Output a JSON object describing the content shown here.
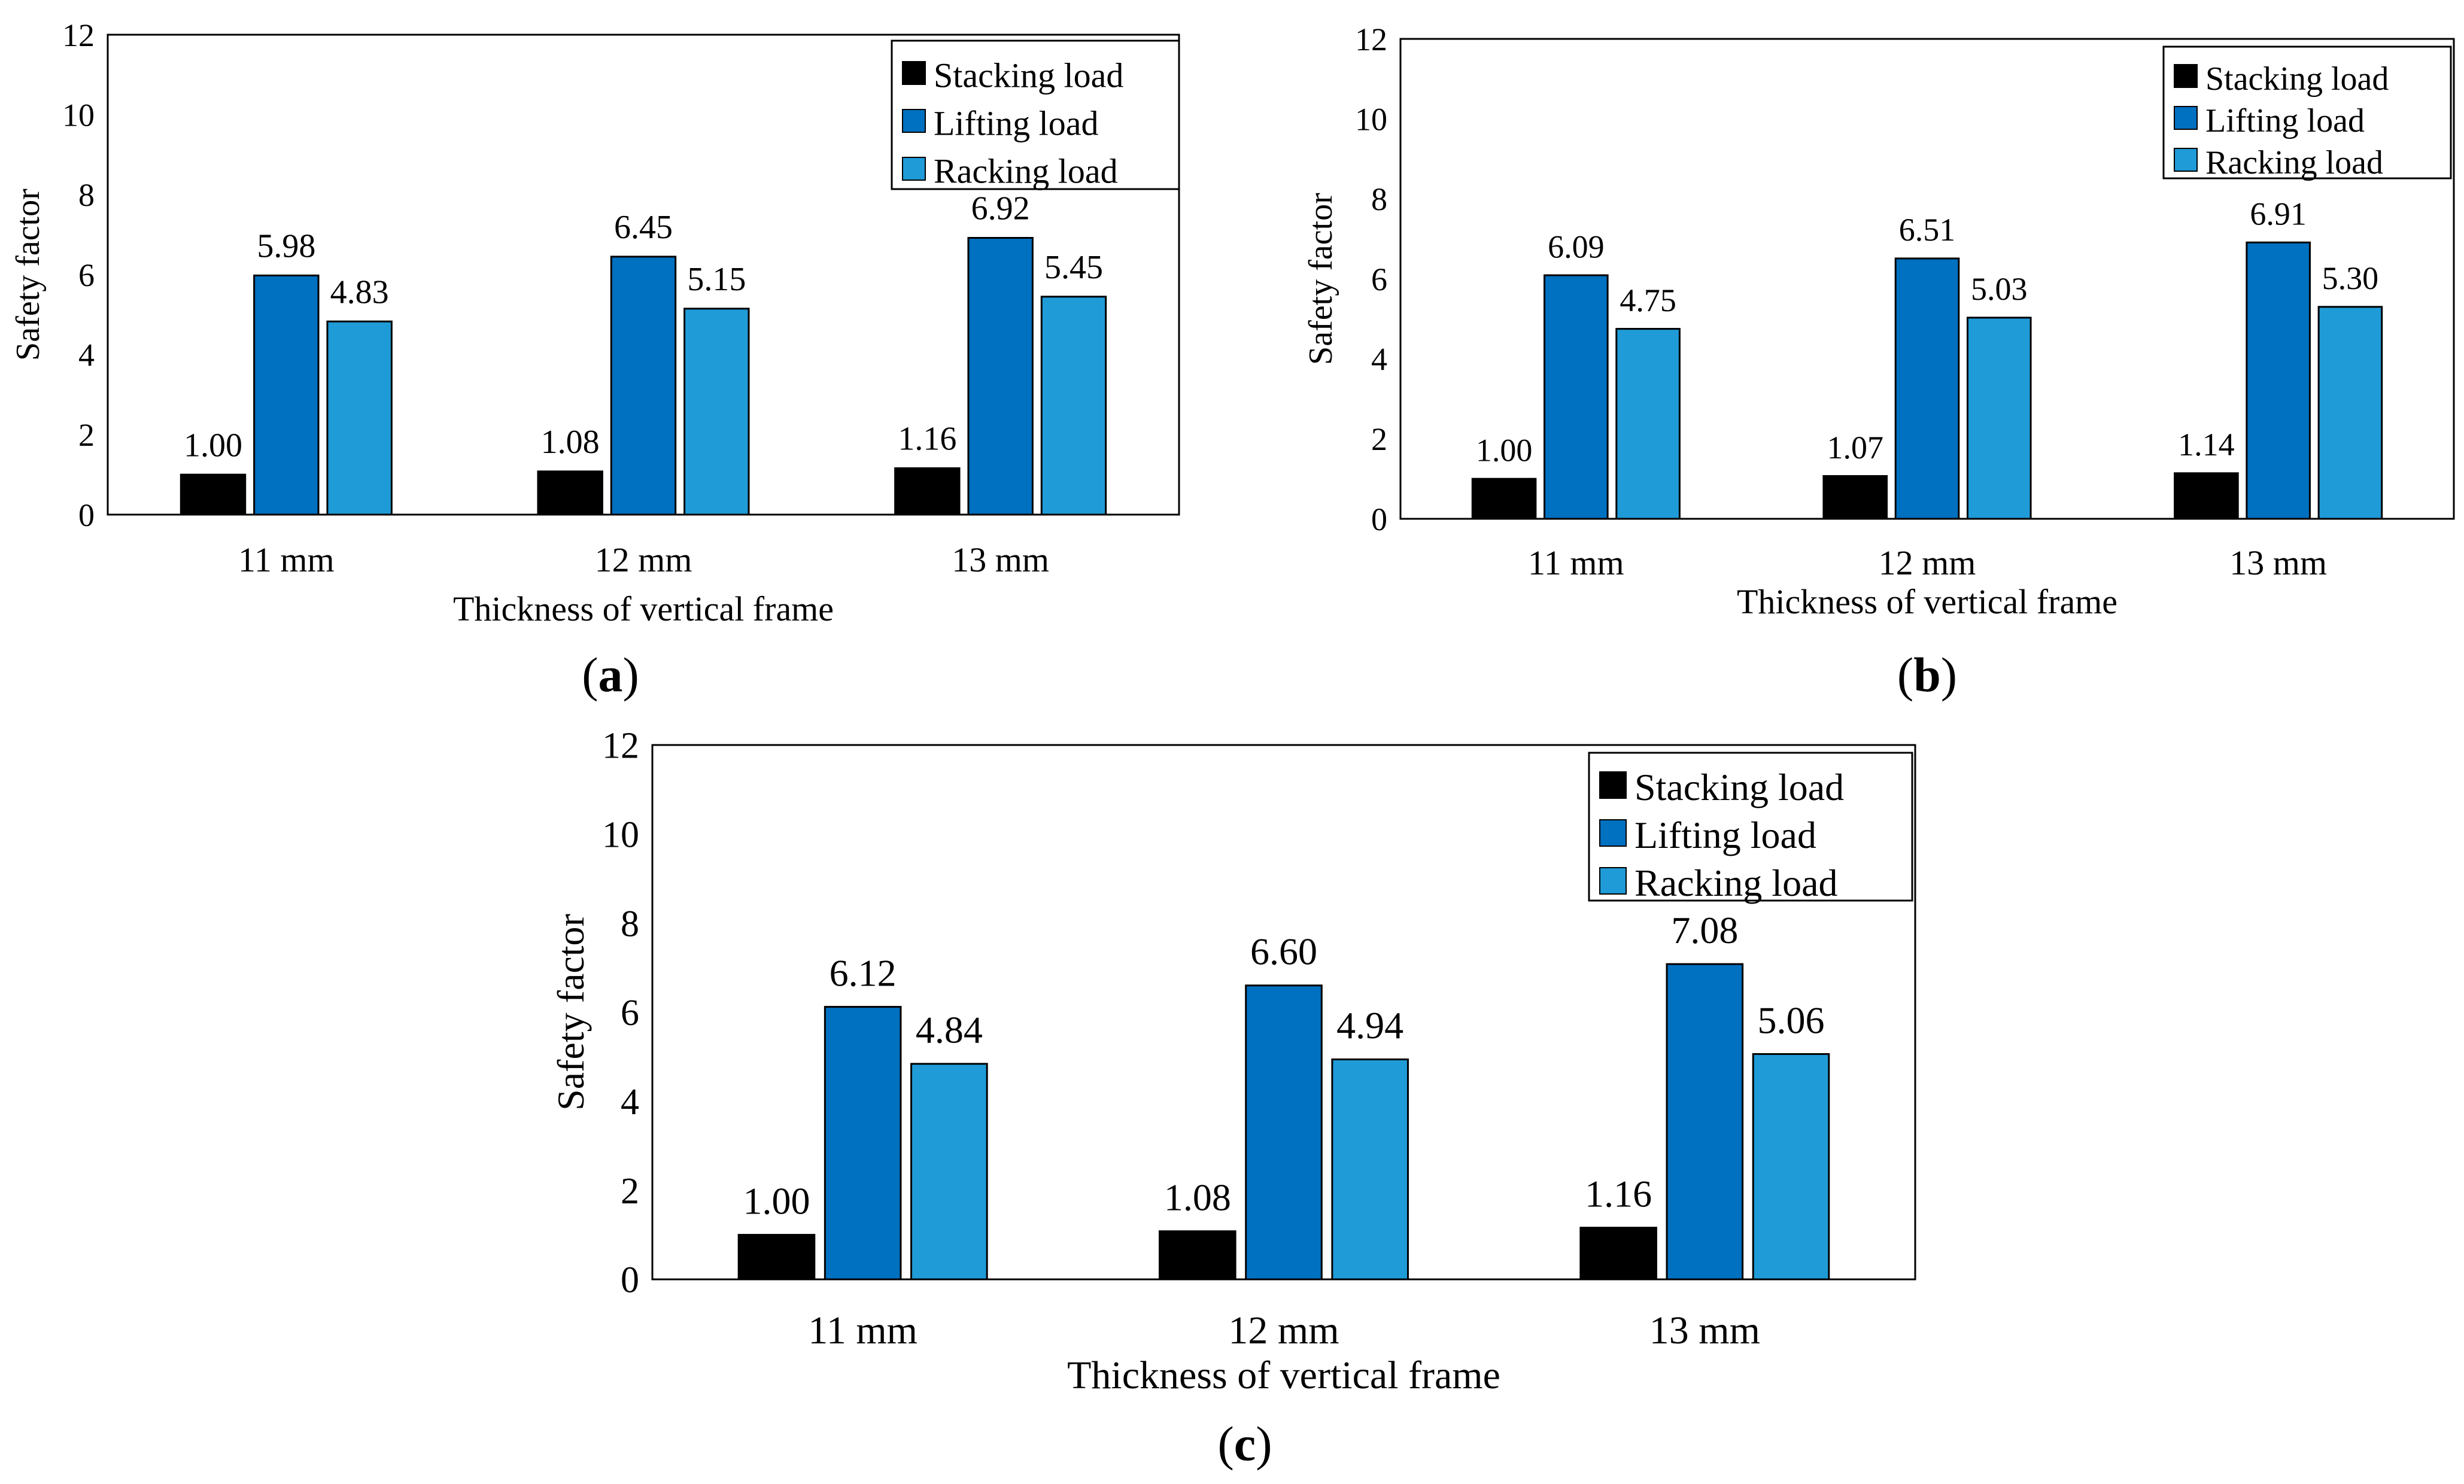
{
  "chart_data": [
    {
      "type": "bar",
      "panel_label": "a",
      "categories": [
        "11 mm",
        "12 mm",
        "13 mm"
      ],
      "series": [
        {
          "name": "Stacking load",
          "color": "#000000",
          "values": [
            1.0,
            1.08,
            1.16
          ],
          "labels": [
            "1.00",
            "1.08",
            "1.16"
          ]
        },
        {
          "name": "Lifting load",
          "color": "#0070C0",
          "values": [
            5.98,
            6.45,
            6.92
          ],
          "labels": [
            "5.98",
            "6.45",
            "6.92"
          ]
        },
        {
          "name": "Racking load",
          "color": "#1F9BD7",
          "values": [
            4.83,
            5.15,
            5.45
          ],
          "labels": [
            "4.83",
            "5.15",
            "5.45"
          ]
        }
      ],
      "title": "",
      "xlabel": "Thickness of vertical frame",
      "ylabel": "Safety factor",
      "ylim": [
        0,
        12
      ],
      "yticks": [
        "0",
        "2",
        "4",
        "6",
        "8",
        "10",
        "12"
      ],
      "grid": false,
      "legend_position": "top-right"
    },
    {
      "type": "bar",
      "panel_label": "b",
      "categories": [
        "11 mm",
        "12 mm",
        "13 mm"
      ],
      "series": [
        {
          "name": "Stacking load",
          "color": "#000000",
          "values": [
            1.0,
            1.07,
            1.14
          ],
          "labels": [
            "1.00",
            "1.07",
            "1.14"
          ]
        },
        {
          "name": "Lifting load",
          "color": "#0070C0",
          "values": [
            6.09,
            6.51,
            6.91
          ],
          "labels": [
            "6.09",
            "6.51",
            "6.91"
          ]
        },
        {
          "name": "Racking load",
          "color": "#1F9BD7",
          "values": [
            4.75,
            5.03,
            5.3
          ],
          "labels": [
            "4.75",
            "5.03",
            "5.30"
          ]
        }
      ],
      "title": "",
      "xlabel": "Thickness of vertical frame",
      "ylabel": "Safety factor",
      "ylim": [
        0,
        12
      ],
      "yticks": [
        "0",
        "2",
        "4",
        "6",
        "8",
        "10",
        "12"
      ],
      "grid": false,
      "legend_position": "top-right"
    },
    {
      "type": "bar",
      "panel_label": "c",
      "categories": [
        "11 mm",
        "12 mm",
        "13 mm"
      ],
      "series": [
        {
          "name": "Stacking load",
          "color": "#000000",
          "values": [
            1.0,
            1.08,
            1.16
          ],
          "labels": [
            "1.00",
            "1.08",
            "1.16"
          ]
        },
        {
          "name": "Lifting load",
          "color": "#0070C0",
          "values": [
            6.12,
            6.6,
            7.08
          ],
          "labels": [
            "6.12",
            "6.60",
            "7.08"
          ]
        },
        {
          "name": "Racking load",
          "color": "#1F9BD7",
          "values": [
            4.84,
            4.94,
            5.06
          ],
          "labels": [
            "4.84",
            "4.94",
            "5.06"
          ]
        }
      ],
      "title": "",
      "xlabel": "Thickness of vertical frame",
      "ylabel": "Safety factor",
      "ylim": [
        0,
        12
      ],
      "yticks": [
        "0",
        "2",
        "4",
        "6",
        "8",
        "10",
        "12"
      ],
      "grid": false,
      "legend_position": "top-right"
    }
  ]
}
